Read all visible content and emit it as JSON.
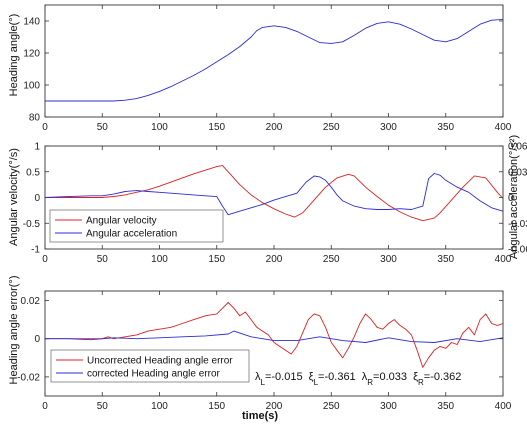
{
  "chart_data": [
    {
      "type": "line",
      "ylabel": "Heading angle(°)",
      "xlim": [
        0,
        400
      ],
      "ylim": [
        80,
        150
      ],
      "xticks": [
        "0",
        "50",
        "100",
        "150",
        "200",
        "250",
        "300",
        "350",
        "400"
      ],
      "yticks": [
        "80",
        "100",
        "120",
        "140"
      ],
      "series": [
        {
          "color": "#2b2bd9",
          "x": [
            0,
            20,
            40,
            60,
            70,
            80,
            90,
            100,
            110,
            120,
            130,
            140,
            150,
            160,
            170,
            180,
            185,
            190,
            200,
            210,
            220,
            230,
            240,
            250,
            260,
            270,
            280,
            290,
            300,
            310,
            320,
            330,
            340,
            350,
            360,
            370,
            380,
            390,
            400
          ],
          "y": [
            90,
            90,
            90,
            90,
            90.5,
            91.5,
            93.5,
            96,
            99,
            102.5,
            106,
            110,
            114.5,
            119,
            124,
            130,
            134,
            136,
            137,
            136,
            133.5,
            130,
            126.5,
            126,
            127,
            131,
            135.5,
            138.5,
            139.5,
            138,
            135,
            131.5,
            128,
            127,
            129,
            133.5,
            138,
            140.5,
            141
          ]
        }
      ]
    },
    {
      "type": "line",
      "ylabel": "Angular velocity(°/s)",
      "y2label": "Angular acceleration(°/s²)",
      "xlim": [
        0,
        400
      ],
      "ylim": [
        -1,
        1
      ],
      "y2lim": [
        -0.06,
        0.06
      ],
      "xticks": [
        "0",
        "50",
        "100",
        "150",
        "200",
        "250",
        "300",
        "350",
        "400"
      ],
      "yticks": [
        "-1",
        "-0.5",
        "0",
        "0.5",
        "1"
      ],
      "y2ticks": [
        "-0.06",
        "-0.03",
        "0",
        "0.03",
        "0.06"
      ],
      "legend_position": "bottom-left",
      "series": [
        {
          "name": "Angular velocity",
          "color": "#e02020",
          "axis": "left",
          "x": [
            0,
            50,
            60,
            70,
            80,
            90,
            100,
            110,
            120,
            130,
            140,
            150,
            155,
            160,
            170,
            180,
            190,
            200,
            210,
            218,
            225,
            235,
            245,
            255,
            265,
            270,
            280,
            290,
            300,
            310,
            320,
            330,
            340,
            345,
            355,
            365,
            375,
            385,
            395,
            400
          ],
          "y": [
            0,
            0,
            0.02,
            0.05,
            0.1,
            0.15,
            0.22,
            0.3,
            0.38,
            0.46,
            0.53,
            0.6,
            0.62,
            0.5,
            0.25,
            0.05,
            -0.1,
            -0.22,
            -0.32,
            -0.38,
            -0.3,
            -0.05,
            0.2,
            0.38,
            0.45,
            0.42,
            0.2,
            0.02,
            -0.15,
            -0.28,
            -0.38,
            -0.45,
            -0.4,
            -0.3,
            -0.05,
            0.2,
            0.42,
            0.38,
            0.1,
            -0.02
          ]
        },
        {
          "name": "Angular acceleration",
          "color": "#2b2bd9",
          "axis": "right",
          "x": [
            0,
            20,
            40,
            50,
            60,
            70,
            80,
            90,
            100,
            110,
            120,
            130,
            140,
            150,
            155,
            160,
            170,
            180,
            190,
            200,
            210,
            220,
            228,
            235,
            240,
            245,
            250,
            255,
            260,
            270,
            280,
            290,
            300,
            310,
            320,
            330,
            335,
            340,
            345,
            350,
            360,
            370,
            380,
            390,
            400
          ],
          "y": [
            0,
            0.001,
            0.002,
            0.002,
            0.004,
            0.007,
            0.008,
            0.007,
            0.006,
            0.005,
            0.004,
            0.003,
            0.002,
            0.001,
            -0.01,
            -0.02,
            -0.016,
            -0.012,
            -0.008,
            -0.003,
            0.001,
            0.005,
            0.018,
            0.025,
            0.024,
            0.02,
            0.012,
            0.003,
            -0.004,
            -0.01,
            -0.013,
            -0.014,
            -0.014,
            -0.013,
            -0.014,
            -0.01,
            0.022,
            0.028,
            0.026,
            0.02,
            0.012,
            0.006,
            -0.004,
            -0.012,
            -0.016
          ]
        }
      ]
    },
    {
      "type": "line",
      "ylabel": "Heading angle error(°)",
      "xlabel": "time(s)",
      "xlim": [
        0,
        400
      ],
      "ylim": [
        -0.03,
        0.025
      ],
      "xticks": [
        "0",
        "50",
        "100",
        "150",
        "200",
        "250",
        "300",
        "350",
        "400"
      ],
      "yticks": [
        "-0.02",
        "0",
        "0.02"
      ],
      "legend_position": "bottom-left",
      "annotation": {
        "lambda_L": "-0.015",
        "xi_L": "-0.361",
        "lambda_R": "0.033",
        "xi_R": "-0.362"
      },
      "series": [
        {
          "name": "Uncorrected  Heading angle error",
          "color": "#e02020",
          "x": [
            0,
            50,
            55,
            60,
            70,
            80,
            90,
            100,
            110,
            120,
            130,
            140,
            150,
            155,
            160,
            165,
            170,
            175,
            180,
            185,
            190,
            195,
            200,
            205,
            210,
            215,
            220,
            230,
            235,
            240,
            245,
            250,
            255,
            260,
            265,
            270,
            275,
            280,
            285,
            290,
            295,
            300,
            305,
            310,
            315,
            320,
            325,
            330,
            335,
            340,
            345,
            350,
            355,
            360,
            365,
            370,
            375,
            380,
            385,
            390,
            395,
            400
          ],
          "y": [
            0,
            0,
            0.001,
            0,
            0.001,
            0.002,
            0.004,
            0.005,
            0.006,
            0.008,
            0.01,
            0.012,
            0.013,
            0.016,
            0.019,
            0.016,
            0.012,
            0.014,
            0.01,
            0.006,
            0.004,
            0.002,
            -0.002,
            -0.004,
            -0.006,
            -0.008,
            -0.004,
            0.01,
            0.013,
            0.012,
            0.006,
            -0.002,
            -0.006,
            -0.01,
            -0.005,
            0.001,
            0.008,
            0.013,
            0.01,
            0.006,
            0.005,
            0.008,
            0.01,
            0.007,
            0.005,
            0.002,
            -0.006,
            -0.015,
            -0.01,
            -0.006,
            -0.004,
            -0.005,
            -0.002,
            -0.003,
            0.003,
            0.006,
            0.002,
            0.01,
            0.013,
            0.008,
            0.007,
            0.008
          ]
        },
        {
          "name": "corrected  Heading angle error",
          "color": "#2b2bd9",
          "x": [
            0,
            20,
            40,
            60,
            80,
            100,
            120,
            140,
            160,
            165,
            180,
            200,
            220,
            240,
            260,
            280,
            300,
            320,
            340,
            360,
            380,
            400
          ],
          "y": [
            0,
            0,
            -0.0005,
            0.0005,
            0,
            0.0005,
            0.001,
            0.0015,
            0.0025,
            0.004,
            0.001,
            -0.001,
            -0.001,
            0.001,
            -0.001,
            -0.002,
            0.0005,
            -0.0015,
            -0.002,
            0,
            -0.0015,
            0.0005
          ]
        }
      ]
    }
  ]
}
